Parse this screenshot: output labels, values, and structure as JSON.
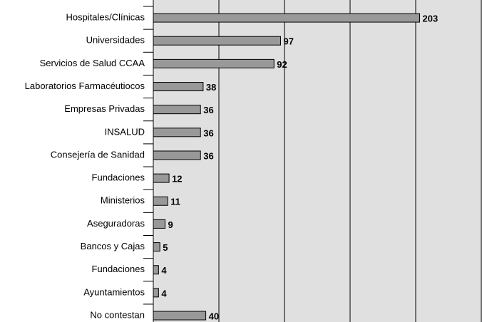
{
  "chart_data": {
    "type": "bar",
    "orientation": "horizontal",
    "categories": [
      "Hospitales/Clínicas",
      "Universidades",
      "Servicios de Salud CCAA",
      "Laboratorios Farmacéutiocos",
      "Empresas Privadas",
      "INSALUD",
      "Consejería de Sanidad",
      "Fundaciones",
      "Ministerios",
      "Aseguradoras",
      "Bancos y Cajas",
      "Fundaciones",
      "Ayuntamientos",
      "No contestan"
    ],
    "values": [
      203,
      97,
      92,
      38,
      36,
      36,
      36,
      12,
      11,
      9,
      5,
      4,
      4,
      40
    ],
    "color": "#999999",
    "background": "#e0e0e0",
    "xlim": [
      0,
      250
    ],
    "xticks": [
      0,
      50,
      100,
      150,
      200,
      250
    ],
    "grid": true
  }
}
